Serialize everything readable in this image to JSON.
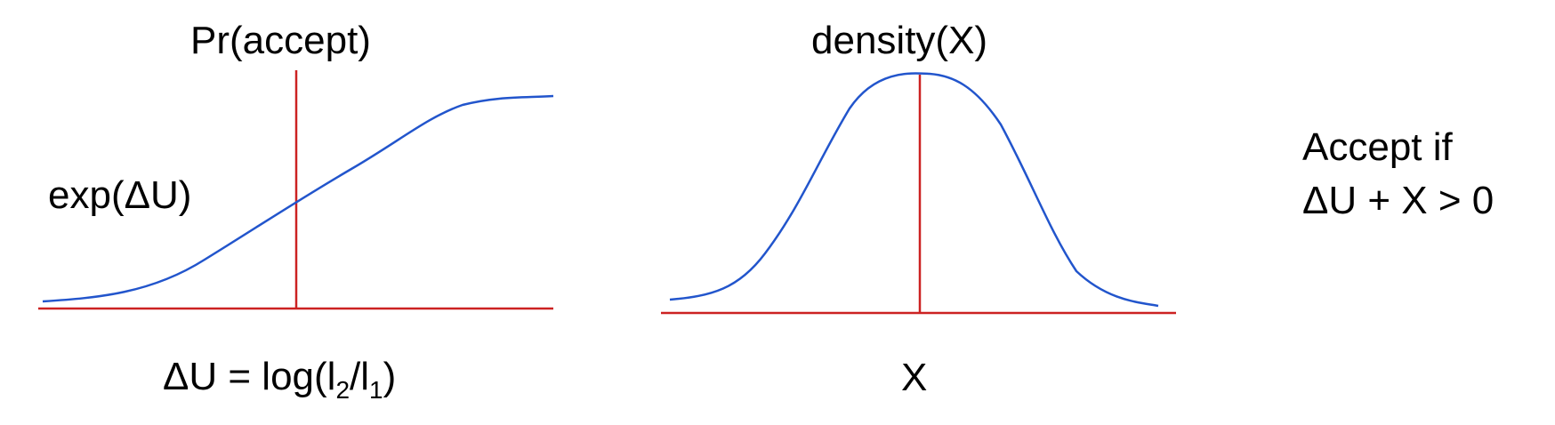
{
  "left_panel": {
    "title": "Pr(accept)",
    "curve_label": "exp(ΔU)",
    "xlabel": {
      "prefix": "ΔU = log(l",
      "sub1": "2",
      "mid": "/l",
      "sub2": "1",
      "suffix": ")"
    }
  },
  "middle_panel": {
    "title": "density(X)",
    "xlabel": "X"
  },
  "rule": {
    "line1": "Accept if",
    "line2": "ΔU + X > 0"
  },
  "colors": {
    "axis": "#cc2222",
    "curve": "#2255cc",
    "text": "#000000"
  }
}
